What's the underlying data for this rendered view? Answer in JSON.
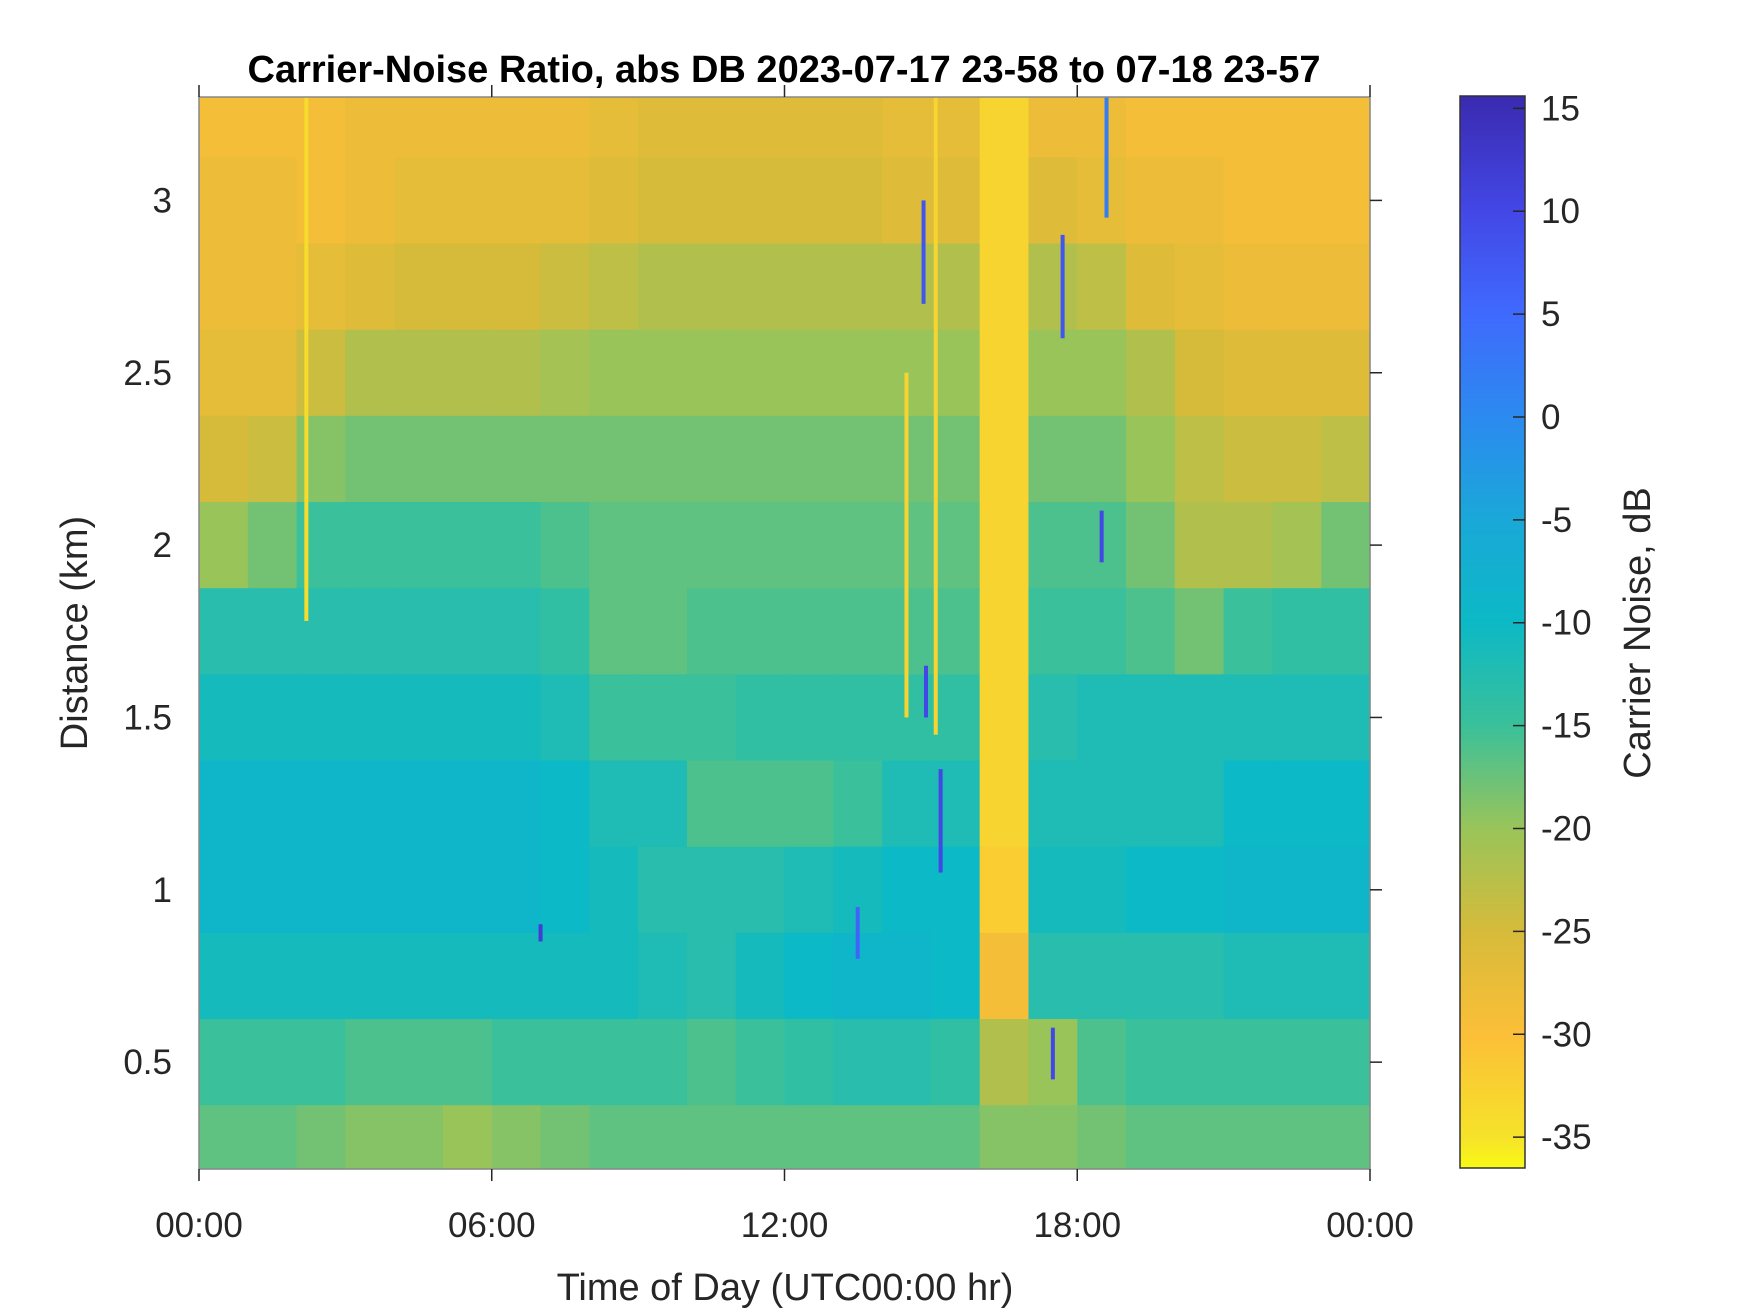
{
  "chart_data": {
    "type": "heatmap",
    "title": "Carrier-Noise Ratio, abs DB 2023-07-17 23-58 to 07-18 23-57",
    "xlabel": "Time of Day (UTC00:00 hr)",
    "ylabel": "Distance (km)",
    "colorbar_label": "Carrier Noise, dB",
    "x_unit": "hour",
    "xlim": [
      0,
      24
    ],
    "ylim": [
      0.19,
      3.3
    ],
    "clim": [
      -36.5,
      15.6
    ],
    "colormap": "parula (reversed: yellow = low, dark blue = high)",
    "x_ticks": [
      0,
      6,
      12,
      18,
      24
    ],
    "x_tick_labels": [
      "00:00",
      "06:00",
      "12:00",
      "18:00",
      "00:00"
    ],
    "y_ticks": [
      0.5,
      1,
      1.5,
      2,
      2.5,
      3
    ],
    "y_tick_labels": [
      "0.5",
      "1",
      "1.5",
      "2",
      "2.5",
      "3"
    ],
    "colorbar_ticks": [
      15,
      10,
      5,
      0,
      -5,
      -10,
      -15,
      -20,
      -25,
      -30,
      -35
    ],
    "colorbar_tick_labels": [
      "15",
      "10",
      "5",
      "0",
      "-5",
      "-10",
      "-15",
      "-20",
      "-25",
      "-30",
      "-35"
    ],
    "colorscale_stops": [
      {
        "db": -36.5,
        "color": "#f9fa14"
      },
      {
        "db": -35,
        "color": "#f6e22a"
      },
      {
        "db": -30,
        "color": "#fcbf38"
      },
      {
        "db": -25,
        "color": "#d6bb3a"
      },
      {
        "db": -20,
        "color": "#99c45a"
      },
      {
        "db": -15,
        "color": "#3ac09a"
      },
      {
        "db": -10,
        "color": "#0cb9c6"
      },
      {
        "db": -5,
        "color": "#1aa8d8"
      },
      {
        "db": 0,
        "color": "#2c8af0"
      },
      {
        "db": 5,
        "color": "#3f6afd"
      },
      {
        "db": 10,
        "color": "#4347e6"
      },
      {
        "db": 15.6,
        "color": "#3a2ab0"
      }
    ],
    "hours": [
      0.5,
      1.5,
      2.5,
      3.5,
      4.5,
      5.5,
      6.5,
      7.5,
      8.5,
      9.5,
      10.5,
      11.5,
      12.5,
      13.5,
      14.5,
      15.5,
      16.5,
      17.5,
      18.5,
      19.5,
      20.5,
      21.5,
      22.5,
      23.5
    ],
    "distances_km": [
      3.25,
      3.0,
      2.75,
      2.5,
      2.25,
      2.0,
      1.75,
      1.5,
      1.25,
      1.0,
      0.75,
      0.5,
      0.25
    ],
    "values_db": [
      [
        -29,
        -29,
        -29,
        -28,
        -28,
        -28,
        -28,
        -28,
        -27,
        -26,
        -26,
        -26,
        -26,
        -26,
        -27,
        -27,
        -33,
        -28,
        -28,
        -29,
        -29,
        -29,
        -29,
        -29
      ],
      [
        -28,
        -28,
        -29,
        -28,
        -27,
        -27,
        -27,
        -27,
        -26,
        -25,
        -25,
        -25,
        -25,
        -25,
        -26,
        -26,
        -33,
        -26,
        -27,
        -28,
        -28,
        -29,
        -29,
        -29
      ],
      [
        -28,
        -28,
        -27,
        -26,
        -25,
        -25,
        -25,
        -24,
        -23,
        -22,
        -22,
        -22,
        -22,
        -22,
        -22,
        -22,
        -33,
        -22,
        -23,
        -26,
        -27,
        -28,
        -28,
        -28
      ],
      [
        -27,
        -27,
        -24,
        -22,
        -22,
        -22,
        -22,
        -21,
        -20,
        -20,
        -20,
        -20,
        -20,
        -20,
        -20,
        -20,
        -33,
        -20,
        -20,
        -22,
        -25,
        -26,
        -26,
        -26
      ],
      [
        -25,
        -24,
        -19,
        -18,
        -18,
        -18,
        -18,
        -18,
        -18,
        -18,
        -18,
        -18,
        -18,
        -18,
        -18,
        -18,
        -33,
        -18,
        -18,
        -20,
        -23,
        -24,
        -24,
        -23
      ],
      [
        -20,
        -18,
        -15,
        -15,
        -15,
        -15,
        -15,
        -16,
        -17,
        -17,
        -17,
        -17,
        -17,
        -17,
        -17,
        -17,
        -33,
        -16,
        -16,
        -18,
        -22,
        -22,
        -21,
        -18
      ],
      [
        -13,
        -13,
        -13,
        -13,
        -13,
        -13,
        -13,
        -14,
        -17,
        -17,
        -16,
        -16,
        -16,
        -16,
        -16,
        -16,
        -33,
        -15,
        -15,
        -16,
        -18,
        -15,
        -14,
        -14
      ],
      [
        -11,
        -11,
        -11,
        -11,
        -11,
        -11,
        -11,
        -12,
        -15,
        -15,
        -15,
        -14,
        -14,
        -14,
        -14,
        -14,
        -33,
        -13,
        -12,
        -12,
        -12,
        -12,
        -12,
        -12
      ],
      [
        -9,
        -9,
        -9,
        -9,
        -9,
        -9,
        -9,
        -10,
        -12,
        -12,
        -16,
        -16,
        -16,
        -15,
        -12,
        -12,
        -33,
        -12,
        -12,
        -12,
        -12,
        -10,
        -10,
        -10
      ],
      [
        -9,
        -9,
        -9,
        -9,
        -9,
        -9,
        -9,
        -10,
        -11,
        -13,
        -13,
        -13,
        -12,
        -11,
        -10,
        -10,
        -32,
        -11,
        -11,
        -10,
        -10,
        -9,
        -9,
        -9
      ],
      [
        -11,
        -11,
        -11,
        -11,
        -11,
        -11,
        -11,
        -11,
        -11,
        -12,
        -13,
        -11,
        -10,
        -9,
        -9,
        -10,
        -29,
        -13,
        -13,
        -13,
        -13,
        -12,
        -12,
        -12
      ],
      [
        -15,
        -15,
        -15,
        -16,
        -16,
        -16,
        -15,
        -15,
        -15,
        -15,
        -16,
        -15,
        -14,
        -13,
        -13,
        -14,
        -22,
        -20,
        -16,
        -15,
        -15,
        -15,
        -15,
        -15
      ],
      [
        -17,
        -17,
        -18,
        -19,
        -19,
        -20,
        -19,
        -18,
        -17,
        -17,
        -17,
        -17,
        -17,
        -17,
        -17,
        -17,
        -19,
        -19,
        -18,
        -17,
        -17,
        -17,
        -17,
        -17
      ]
    ],
    "streaks": [
      {
        "hour": 2.2,
        "from_km": 1.78,
        "to_km": 3.3,
        "value_db": -34
      },
      {
        "hour": 14.5,
        "from_km": 1.5,
        "to_km": 2.5,
        "value_db": -33
      },
      {
        "hour": 15.1,
        "from_km": 1.45,
        "to_km": 3.3,
        "value_db": -33
      },
      {
        "hour": 14.85,
        "from_km": 2.7,
        "to_km": 3.0,
        "value_db": 8
      },
      {
        "hour": 14.9,
        "from_km": 1.5,
        "to_km": 1.65,
        "value_db": 10
      },
      {
        "hour": 15.2,
        "from_km": 1.05,
        "to_km": 1.35,
        "value_db": 10
      },
      {
        "hour": 17.7,
        "from_km": 2.6,
        "to_km": 2.9,
        "value_db": 8
      },
      {
        "hour": 18.6,
        "from_km": 2.95,
        "to_km": 3.3,
        "value_db": 2
      },
      {
        "hour": 18.5,
        "from_km": 1.95,
        "to_km": 2.1,
        "value_db": 10
      },
      {
        "hour": 17.5,
        "from_km": 0.45,
        "to_km": 0.6,
        "value_db": 10
      },
      {
        "hour": 13.5,
        "from_km": 0.8,
        "to_km": 0.95,
        "value_db": 6
      },
      {
        "hour": 7.0,
        "from_km": 0.85,
        "to_km": 0.9,
        "value_db": 12
      }
    ]
  }
}
